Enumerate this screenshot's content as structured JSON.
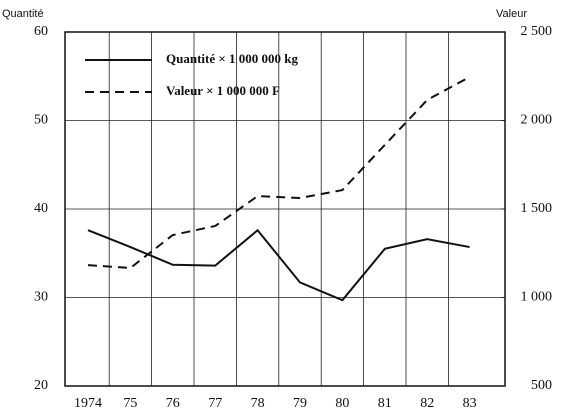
{
  "chart_data": {
    "type": "line",
    "y_label": "Quantité",
    "y2_label": "Valeur",
    "categories": [
      "1974",
      "75",
      "76",
      "77",
      "78",
      "79",
      "80",
      "81",
      "82",
      "83"
    ],
    "series": [
      {
        "name": "Quantité × 1 000 000 kg",
        "color": "#111111",
        "style": "solid",
        "values": [
          37.6,
          35.7,
          33.7,
          33.6,
          37.6,
          31.7,
          29.7,
          35.5,
          36.6,
          35.7
        ]
      },
      {
        "name": "Valeur × 1 000 000 F",
        "color": "#111111",
        "style": "dashed",
        "axis": "y2",
        "values": [
          1183,
          1167,
          1353,
          1404,
          1573,
          1562,
          1607,
          1862,
          2116,
          2246
        ]
      }
    ],
    "ylim": [
      20,
      60
    ],
    "yticks": [
      20,
      30,
      40,
      50,
      60
    ],
    "y2lim": [
      500,
      2500
    ],
    "y2ticks": [
      {
        "value": 500,
        "label": "500"
      },
      {
        "value": 1000,
        "label": "1 000"
      },
      {
        "value": 1500,
        "label": "1 500"
      },
      {
        "value": 2000,
        "label": "2 000"
      },
      {
        "value": 2500,
        "label": "2 500"
      }
    ],
    "grid": true
  }
}
